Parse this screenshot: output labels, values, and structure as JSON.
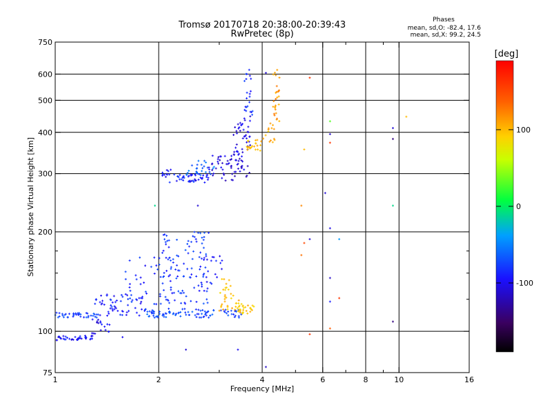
{
  "header": {
    "title": "Tromsø 20170718 20:38:00-20:39:43",
    "subtitle": "RwPretec (8p)"
  },
  "stats": {
    "heading": "Phases",
    "o_line": "mean, sd,O: -82.4, 17.6",
    "x_line": "mean, sd,X:  99.2, 24.5"
  },
  "colorbar": {
    "unit": "[deg]",
    "ticks": [
      {
        "value": 100,
        "label": "100"
      },
      {
        "value": 0,
        "label": "0"
      },
      {
        "value": -100,
        "label": "-100"
      }
    ],
    "range": [
      -190,
      190
    ]
  },
  "chart_data": {
    "type": "scatter",
    "title": "Tromsø 20170718 20:38:00-20:39:43",
    "subtitle": "RwPretec (8p)",
    "xlabel": "Frequency [MHz]",
    "ylabel": "Stationary phase Virtual Height [km]",
    "xscale": "log",
    "yscale": "log",
    "xlim": [
      1,
      16
    ],
    "ylim": [
      75,
      750
    ],
    "xticks": [
      {
        "value": 1,
        "label": "1"
      },
      {
        "value": 2,
        "label": "2"
      },
      {
        "value": 4,
        "label": "4"
      },
      {
        "value": 6,
        "label": "6"
      },
      {
        "value": 8,
        "label": "8"
      },
      {
        "value": 10,
        "label": "10"
      },
      {
        "value": 16,
        "label": "16"
      }
    ],
    "xgrid": [
      2,
      4,
      6,
      8,
      10
    ],
    "xminor": [
      3,
      5,
      7,
      9
    ],
    "yticks": [
      {
        "value": 75,
        "label": "75"
      },
      {
        "value": 100,
        "label": "100"
      },
      {
        "value": 200,
        "label": "200"
      },
      {
        "value": 300,
        "label": "300"
      },
      {
        "value": 400,
        "label": "400"
      },
      {
        "value": 500,
        "label": "500"
      },
      {
        "value": 600,
        "label": "600"
      },
      {
        "value": 750,
        "label": "750"
      }
    ],
    "ygrid": [
      100,
      200,
      300,
      400,
      500,
      600
    ],
    "yminor": [
      125,
      150,
      175
    ],
    "grid": true,
    "color_by": "phase [deg]",
    "clusters": [
      {
        "x": [
          1.0,
          1.3
        ],
        "y": [
          94,
          97
        ],
        "phase": -95,
        "n": 40
      },
      {
        "x": [
          1.28,
          1.45
        ],
        "y": [
          97,
          110
        ],
        "phase": -100,
        "n": 18
      },
      {
        "x": [
          1.0,
          1.35
        ],
        "y": [
          110,
          114
        ],
        "phase": -75,
        "n": 40
      },
      {
        "x": [
          1.3,
          1.8
        ],
        "y": [
          111,
          130
        ],
        "phase": -90,
        "n": 55
      },
      {
        "x": [
          1.6,
          2.2
        ],
        "y": [
          113,
          170
        ],
        "phase": -85,
        "n": 55
      },
      {
        "x": [
          1.85,
          2.3
        ],
        "y": [
          110,
          116
        ],
        "phase": -70,
        "n": 35
      },
      {
        "x": [
          2.2,
          3.5
        ],
        "y": [
          110,
          117
        ],
        "phase": -75,
        "n": 60
      },
      {
        "x": [
          2.05,
          2.8
        ],
        "y": [
          120,
          200
        ],
        "phase": -80,
        "n": 90
      },
      {
        "x": [
          2.6,
          3.1
        ],
        "y": [
          130,
          170
        ],
        "phase": -90,
        "n": 25
      },
      {
        "x": [
          3.0,
          3.3
        ],
        "y": [
          125,
          145
        ],
        "phase": 95,
        "n": 18
      },
      {
        "x": [
          3.0,
          3.5
        ],
        "y": [
          115,
          125
        ],
        "phase": 100,
        "n": 22
      },
      {
        "x": [
          3.4,
          3.8
        ],
        "y": [
          113,
          120
        ],
        "phase": 95,
        "n": 22
      },
      {
        "x": [
          2.05,
          2.2
        ],
        "y": [
          280,
          310
        ],
        "phase": -95,
        "n": 12
      },
      {
        "x": [
          2.2,
          2.8
        ],
        "y": [
          282,
          300
        ],
        "phase": -90,
        "n": 45
      },
      {
        "x": [
          2.4,
          2.9
        ],
        "y": [
          295,
          330
        ],
        "phase": -60,
        "n": 25
      },
      {
        "x": [
          2.8,
          3.7
        ],
        "y": [
          285,
          340
        ],
        "phase": -110,
        "n": 60
      },
      {
        "x": [
          3.3,
          3.7
        ],
        "y": [
          340,
          450
        ],
        "phase": -105,
        "n": 45
      },
      {
        "x": [
          3.55,
          3.75
        ],
        "y": [
          450,
          630
        ],
        "phase": -85,
        "n": 22
      },
      {
        "x": [
          3.6,
          4.0
        ],
        "y": [
          350,
          380
        ],
        "phase": 100,
        "n": 22
      },
      {
        "x": [
          4.0,
          4.35
        ],
        "y": [
          370,
          430
        ],
        "phase": 105,
        "n": 14
      },
      {
        "x": [
          4.3,
          4.5
        ],
        "y": [
          430,
          620
        ],
        "phase": 115,
        "n": 28
      }
    ],
    "points": [
      {
        "x": 4.1,
        "y": 605,
        "phase": -110
      },
      {
        "x": 4.1,
        "y": 78,
        "phase": -115
      },
      {
        "x": 5.3,
        "y": 355,
        "phase": 100
      },
      {
        "x": 5.2,
        "y": 240,
        "phase": 120
      },
      {
        "x": 5.2,
        "y": 170,
        "phase": 130
      },
      {
        "x": 5.3,
        "y": 185,
        "phase": 150
      },
      {
        "x": 5.5,
        "y": 585,
        "phase": 160
      },
      {
        "x": 5.5,
        "y": 190,
        "phase": -110
      },
      {
        "x": 5.5,
        "y": 98,
        "phase": 160
      },
      {
        "x": 6.1,
        "y": 262,
        "phase": -110
      },
      {
        "x": 6.3,
        "y": 432,
        "phase": 30
      },
      {
        "x": 6.3,
        "y": 395,
        "phase": -115
      },
      {
        "x": 6.3,
        "y": 372,
        "phase": 160
      },
      {
        "x": 6.3,
        "y": 205,
        "phase": -105
      },
      {
        "x": 6.3,
        "y": 145,
        "phase": -115
      },
      {
        "x": 6.3,
        "y": 123,
        "phase": -90
      },
      {
        "x": 6.3,
        "y": 102,
        "phase": 140
      },
      {
        "x": 6.7,
        "y": 190,
        "phase": -40
      },
      {
        "x": 6.7,
        "y": 126,
        "phase": 160
      },
      {
        "x": 9.6,
        "y": 412,
        "phase": -110
      },
      {
        "x": 9.6,
        "y": 382,
        "phase": -140
      },
      {
        "x": 9.6,
        "y": 240,
        "phase": -10
      },
      {
        "x": 9.6,
        "y": 107,
        "phase": -140
      },
      {
        "x": 10.5,
        "y": 446,
        "phase": 100
      },
      {
        "x": 1.95,
        "y": 240,
        "phase": -10
      },
      {
        "x": 2.6,
        "y": 240,
        "phase": -110
      },
      {
        "x": 2.4,
        "y": 88,
        "phase": -110
      },
      {
        "x": 3.4,
        "y": 88,
        "phase": -100
      },
      {
        "x": 1.57,
        "y": 96,
        "phase": -100
      }
    ]
  }
}
